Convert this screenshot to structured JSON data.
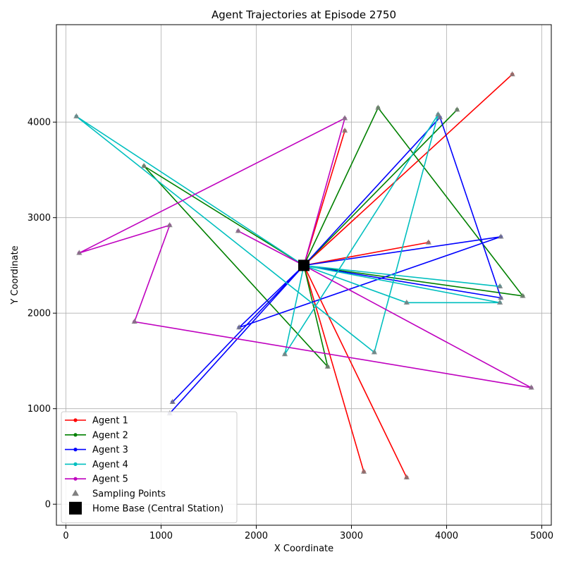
{
  "chart_data": {
    "type": "line",
    "title": "Agent Trajectories at Episode 2750",
    "xlabel": "X Coordinate",
    "ylabel": "Y Coordinate",
    "xlim": [
      -100,
      5100
    ],
    "ylim": [
      -220,
      5020
    ],
    "xticks": [
      0,
      1000,
      2000,
      3000,
      4000,
      5000
    ],
    "yticks": [
      0,
      1000,
      2000,
      3000,
      4000
    ],
    "grid": true,
    "legend_position": "lower-left",
    "home_base": {
      "name": "Home Base (Central Station)",
      "x": 2500,
      "y": 2500,
      "color": "#000000"
    },
    "sampling_points": {
      "name": "Sampling Points",
      "color": "#808080"
    },
    "series": [
      {
        "name": "Agent 1",
        "color": "#ff0000",
        "points": [
          [
            2500,
            2500
          ],
          [
            2930,
            3910
          ],
          [
            2500,
            2500
          ],
          [
            4690,
            4500
          ],
          [
            2500,
            2500
          ],
          [
            3810,
            2740
          ],
          [
            2500,
            2500
          ],
          [
            3130,
            340
          ],
          [
            2500,
            2500
          ],
          [
            3580,
            280
          ],
          [
            2500,
            2500
          ]
        ]
      },
      {
        "name": "Agent 2",
        "color": "#008000",
        "points": [
          [
            2500,
            2500
          ],
          [
            3280,
            4150
          ],
          [
            4800,
            2180
          ],
          [
            2500,
            2500
          ],
          [
            820,
            3540
          ],
          [
            2750,
            1440
          ],
          [
            2500,
            2500
          ],
          [
            4110,
            4130
          ],
          [
            2500,
            2500
          ]
        ]
      },
      {
        "name": "Agent 3",
        "color": "#0000ff",
        "points": [
          [
            2500,
            2500
          ],
          [
            1120,
            1070
          ],
          [
            2500,
            2500
          ],
          [
            1090,
            950
          ],
          [
            2500,
            2500
          ],
          [
            4570,
            2800
          ],
          [
            1820,
            1850
          ],
          [
            2500,
            2500
          ],
          [
            3930,
            4050
          ],
          [
            4570,
            2160
          ],
          [
            2500,
            2500
          ]
        ]
      },
      {
        "name": "Agent 4",
        "color": "#00bfbf",
        "points": [
          [
            2500,
            2500
          ],
          [
            4560,
            2280
          ],
          [
            2500,
            2500
          ],
          [
            110,
            4060
          ],
          [
            3240,
            1590
          ],
          [
            3910,
            4080
          ],
          [
            2300,
            1570
          ],
          [
            2500,
            2500
          ],
          [
            4560,
            2110
          ],
          [
            3580,
            2110
          ],
          [
            2500,
            2500
          ]
        ]
      },
      {
        "name": "Agent 5",
        "color": "#bf00bf",
        "points": [
          [
            2500,
            2500
          ],
          [
            4890,
            1220
          ],
          [
            720,
            1910
          ],
          [
            1090,
            2920
          ],
          [
            140,
            2630
          ],
          [
            2930,
            4040
          ],
          [
            2500,
            2500
          ],
          [
            1810,
            2860
          ],
          [
            2500,
            2500
          ]
        ]
      }
    ]
  }
}
